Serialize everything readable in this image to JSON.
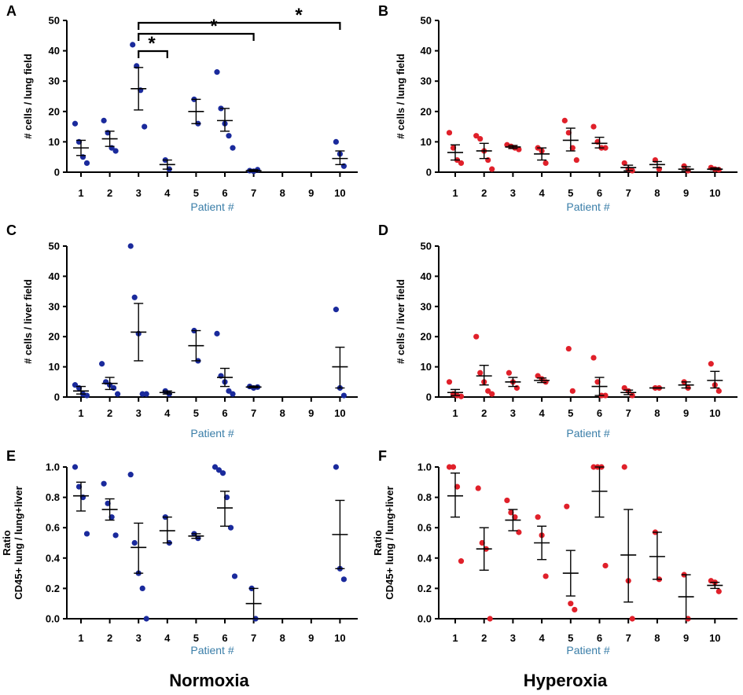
{
  "colors": {
    "normoxia": "#1a2a9c",
    "hyperoxia": "#e0202a",
    "axis": "#000000",
    "xlabel": "#3a7ea8"
  },
  "conditions": {
    "left": "Normoxia",
    "right": "Hyperoxia"
  },
  "chart_data": [
    {
      "id": "A",
      "type": "scatter",
      "panel_label": "A",
      "condition": "normoxia",
      "ylabel": "# cells / lung field",
      "xlabel": "Patient #",
      "ylim": [
        0,
        50
      ],
      "yticks": [
        "0",
        "10",
        "20",
        "30",
        "40",
        "50"
      ],
      "ytick_values": [
        0,
        10,
        20,
        30,
        40,
        50
      ],
      "categories": [
        "1",
        "2",
        "3",
        "4",
        "5",
        "6",
        "7",
        "8",
        "9",
        "10"
      ],
      "groups": [
        {
          "patient": "1",
          "points": [
            16,
            10,
            5,
            3
          ],
          "mean": 8,
          "sem": [
            5.5,
            10.5
          ]
        },
        {
          "patient": "2",
          "points": [
            17,
            13,
            8,
            7
          ],
          "mean": 11,
          "sem": [
            8.5,
            13.5
          ]
        },
        {
          "patient": "3",
          "points": [
            42,
            35,
            27,
            15
          ],
          "mean": 27.5,
          "sem": [
            20.5,
            34.5
          ]
        },
        {
          "patient": "4",
          "points": [
            4,
            1
          ],
          "mean": 2.5,
          "sem": [
            1,
            4
          ]
        },
        {
          "patient": "5",
          "points": [
            24,
            16
          ],
          "mean": 20,
          "sem": [
            16,
            24
          ]
        },
        {
          "patient": "6",
          "points": [
            33,
            21,
            16,
            12,
            8
          ],
          "mean": 17,
          "sem": [
            13.5,
            21
          ]
        },
        {
          "patient": "7",
          "points": [
            0.5,
            0.3,
            0.8
          ],
          "mean": 0.5,
          "sem": [
            0.2,
            0.8
          ]
        },
        {
          "patient": "8",
          "points": [],
          "mean": null,
          "sem": null
        },
        {
          "patient": "9",
          "points": [],
          "mean": null,
          "sem": null
        },
        {
          "patient": "10",
          "points": [
            10,
            6,
            2
          ],
          "mean": 4.5,
          "sem": [
            2.5,
            7
          ]
        }
      ],
      "significance": [
        {
          "from": "3",
          "to": "4",
          "label": "*"
        },
        {
          "from": "3",
          "to": "7",
          "label": "*"
        },
        {
          "from": "3",
          "to": "10",
          "label": "*"
        }
      ]
    },
    {
      "id": "B",
      "type": "scatter",
      "panel_label": "B",
      "condition": "hyperoxia",
      "ylabel": "# cells / lung field",
      "xlabel": "Patient #",
      "ylim": [
        0,
        50
      ],
      "yticks": [
        "0",
        "10",
        "20",
        "30",
        "40",
        "50"
      ],
      "ytick_values": [
        0,
        10,
        20,
        30,
        40,
        50
      ],
      "categories": [
        "1",
        "2",
        "3",
        "4",
        "5",
        "6",
        "7",
        "8",
        "9",
        "10"
      ],
      "groups": [
        {
          "patient": "1",
          "points": [
            13,
            8,
            4,
            3
          ],
          "mean": 6.5,
          "sem": [
            4,
            9
          ]
        },
        {
          "patient": "2",
          "points": [
            12,
            11,
            7,
            4,
            1
          ],
          "mean": 7,
          "sem": [
            4.5,
            9.5
          ]
        },
        {
          "patient": "3",
          "points": [
            9,
            8.5,
            8,
            7.5
          ],
          "mean": 8.3,
          "sem": [
            7.8,
            8.8
          ]
        },
        {
          "patient": "4",
          "points": [
            8,
            7,
            3
          ],
          "mean": 6,
          "sem": [
            4,
            8
          ]
        },
        {
          "patient": "5",
          "points": [
            17,
            13,
            8,
            4
          ],
          "mean": 10.5,
          "sem": [
            7,
            14.5
          ]
        },
        {
          "patient": "6",
          "points": [
            15,
            10,
            8,
            8
          ],
          "mean": 9.5,
          "sem": [
            8,
            11.5
          ]
        },
        {
          "patient": "7",
          "points": [
            3,
            1,
            0.5
          ],
          "mean": 1.5,
          "sem": [
            0.5,
            2.3
          ]
        },
        {
          "patient": "8",
          "points": [
            4,
            1
          ],
          "mean": 2.5,
          "sem": [
            1.5,
            3.5
          ]
        },
        {
          "patient": "9",
          "points": [
            2,
            0.5
          ],
          "mean": 1,
          "sem": [
            0.5,
            1.8
          ]
        },
        {
          "patient": "10",
          "points": [
            1.5,
            1,
            0.8
          ],
          "mean": 1,
          "sem": [
            0.8,
            1.4
          ]
        }
      ]
    },
    {
      "id": "C",
      "type": "scatter",
      "panel_label": "C",
      "condition": "normoxia",
      "ylabel": "# cells / liver field",
      "xlabel": "Patient #",
      "ylim": [
        0,
        50
      ],
      "yticks": [
        "0",
        "10",
        "20",
        "30",
        "40",
        "50"
      ],
      "ytick_values": [
        0,
        10,
        20,
        30,
        40,
        50
      ],
      "categories": [
        "1",
        "2",
        "3",
        "4",
        "5",
        "6",
        "7",
        "8",
        "9",
        "10"
      ],
      "groups": [
        {
          "patient": "1",
          "points": [
            4,
            3,
            1,
            0.5
          ],
          "mean": 2,
          "sem": [
            1,
            3.5
          ]
        },
        {
          "patient": "2",
          "points": [
            11,
            5,
            4,
            3,
            1
          ],
          "mean": 4.5,
          "sem": [
            2.5,
            6.5
          ]
        },
        {
          "patient": "3",
          "points": [
            50,
            33,
            21,
            1,
            1
          ],
          "mean": 21.5,
          "sem": [
            12,
            31
          ]
        },
        {
          "patient": "4",
          "points": [
            2,
            1
          ],
          "mean": 1.5,
          "sem": [
            1,
            2
          ]
        },
        {
          "patient": "5",
          "points": [
            22,
            12
          ],
          "mean": 17,
          "sem": [
            12,
            22
          ]
        },
        {
          "patient": "6",
          "points": [
            21,
            7,
            5,
            2,
            1
          ],
          "mean": 6.5,
          "sem": [
            3.5,
            9.5
          ]
        },
        {
          "patient": "7",
          "points": [
            3.5,
            3,
            3.3
          ],
          "mean": 3.3,
          "sem": [
            3.1,
            3.6
          ]
        },
        {
          "patient": "8",
          "points": [],
          "mean": null,
          "sem": null
        },
        {
          "patient": "9",
          "points": [],
          "mean": null,
          "sem": null
        },
        {
          "patient": "10",
          "points": [
            29,
            3,
            0.5
          ],
          "mean": 10,
          "sem": [
            3,
            16.5
          ]
        }
      ]
    },
    {
      "id": "D",
      "type": "scatter",
      "panel_label": "D",
      "condition": "hyperoxia",
      "ylabel": "# cells / liver field",
      "xlabel": "Patient #",
      "ylim": [
        0,
        50
      ],
      "yticks": [
        "0",
        "10",
        "20",
        "30",
        "40",
        "50"
      ],
      "ytick_values": [
        0,
        10,
        20,
        30,
        40,
        50
      ],
      "categories": [
        "1",
        "2",
        "3",
        "4",
        "5",
        "6",
        "7",
        "8",
        "9",
        "10"
      ],
      "groups": [
        {
          "patient": "1",
          "points": [
            5,
            1,
            0.5,
            0.2
          ],
          "mean": 1.5,
          "sem": [
            0.5,
            2.5
          ]
        },
        {
          "patient": "2",
          "points": [
            20,
            8,
            5,
            2,
            1
          ],
          "mean": 7,
          "sem": [
            4,
            10.5
          ]
        },
        {
          "patient": "3",
          "points": [
            8,
            5,
            3
          ],
          "mean": 5,
          "sem": [
            3.5,
            6.5
          ]
        },
        {
          "patient": "4",
          "points": [
            7,
            6,
            5
          ],
          "mean": 5.5,
          "sem": [
            4.8,
            6.3
          ]
        },
        {
          "patient": "5",
          "points": [
            16,
            2
          ],
          "mean": null,
          "sem": null
        },
        {
          "patient": "6",
          "points": [
            13,
            5,
            0.5,
            0.5
          ],
          "mean": 3.5,
          "sem": [
            0.5,
            6.5
          ]
        },
        {
          "patient": "7",
          "points": [
            3,
            2,
            0.5
          ],
          "mean": 1.5,
          "sem": [
            0.8,
            2.3
          ]
        },
        {
          "patient": "8",
          "points": [
            3,
            3
          ],
          "mean": 3,
          "sem": [
            3,
            3
          ]
        },
        {
          "patient": "9",
          "points": [
            5,
            3
          ],
          "mean": 4,
          "sem": [
            3,
            5
          ]
        },
        {
          "patient": "10",
          "points": [
            11,
            4,
            2
          ],
          "mean": 5.5,
          "sem": [
            3,
            8.5
          ]
        }
      ]
    },
    {
      "id": "E",
      "type": "scatter",
      "panel_label": "E",
      "condition": "normoxia",
      "ylabel": "CD45+ lung / lung+liver",
      "ylabel2": "Ratio",
      "xlabel": "Patient #",
      "ylim": [
        0,
        1
      ],
      "yticks": [
        "0.0",
        "0.2",
        "0.4",
        "0.6",
        "0.8",
        "1.0"
      ],
      "ytick_values": [
        0,
        0.2,
        0.4,
        0.6,
        0.8,
        1.0
      ],
      "categories": [
        "1",
        "2",
        "3",
        "4",
        "5",
        "6",
        "7",
        "8",
        "9",
        "10"
      ],
      "groups": [
        {
          "patient": "1",
          "points": [
            1.0,
            0.87,
            0.8,
            0.56
          ],
          "mean": 0.81,
          "sem": [
            0.71,
            0.9
          ]
        },
        {
          "patient": "2",
          "points": [
            0.89,
            0.76,
            0.67,
            0.55
          ],
          "mean": 0.72,
          "sem": [
            0.65,
            0.79
          ]
        },
        {
          "patient": "3",
          "points": [
            0.95,
            0.5,
            0.3,
            0.2,
            0.0
          ],
          "mean": 0.47,
          "sem": [
            0.3,
            0.63
          ]
        },
        {
          "patient": "4",
          "points": [
            0.67,
            0.5
          ],
          "mean": 0.58,
          "sem": [
            0.5,
            0.67
          ]
        },
        {
          "patient": "5",
          "points": [
            0.56,
            0.53
          ],
          "mean": 0.545,
          "sem": [
            0.53,
            0.56
          ]
        },
        {
          "patient": "6",
          "points": [
            1.0,
            0.98,
            0.96,
            0.8,
            0.6,
            0.28
          ],
          "mean": 0.73,
          "sem": [
            0.61,
            0.84
          ]
        },
        {
          "patient": "7",
          "points": [
            0.2,
            0.0
          ],
          "mean": 0.1,
          "sem": [
            0.0,
            0.2
          ]
        },
        {
          "patient": "8",
          "points": [],
          "mean": null,
          "sem": null
        },
        {
          "patient": "9",
          "points": [],
          "mean": null,
          "sem": null
        },
        {
          "patient": "10",
          "points": [
            1.0,
            0.33,
            0.26
          ],
          "mean": 0.555,
          "sem": [
            0.33,
            0.78
          ]
        }
      ]
    },
    {
      "id": "F",
      "type": "scatter",
      "panel_label": "F",
      "condition": "hyperoxia",
      "ylabel": "CD45+ lung / lung+liver",
      "ylabel2": "Ratio",
      "xlabel": "Patient #",
      "ylim": [
        0,
        1
      ],
      "yticks": [
        "0.0",
        "0.2",
        "0.4",
        "0.6",
        "0.8",
        "1.0"
      ],
      "ytick_values": [
        0,
        0.2,
        0.4,
        0.6,
        0.8,
        1.0
      ],
      "categories": [
        "1",
        "2",
        "3",
        "4",
        "5",
        "6",
        "7",
        "8",
        "9",
        "10"
      ],
      "groups": [
        {
          "patient": "1",
          "points": [
            1.0,
            1.0,
            0.87,
            0.38
          ],
          "mean": 0.81,
          "sem": [
            0.67,
            0.96
          ]
        },
        {
          "patient": "2",
          "points": [
            0.86,
            0.5,
            0.46,
            0.0
          ],
          "mean": 0.46,
          "sem": [
            0.32,
            0.6
          ]
        },
        {
          "patient": "3",
          "points": [
            0.78,
            0.7,
            0.67,
            0.57
          ],
          "mean": 0.65,
          "sem": [
            0.58,
            0.72
          ]
        },
        {
          "patient": "4",
          "points": [
            0.67,
            0.55,
            0.28
          ],
          "mean": 0.5,
          "sem": [
            0.39,
            0.61
          ]
        },
        {
          "patient": "5",
          "points": [
            0.74,
            0.1,
            0.06
          ],
          "mean": 0.3,
          "sem": [
            0.15,
            0.45
          ]
        },
        {
          "patient": "6",
          "points": [
            1.0,
            1.0,
            1.0,
            0.35
          ],
          "mean": 0.84,
          "sem": [
            0.67,
            1.0
          ]
        },
        {
          "patient": "7",
          "points": [
            1.0,
            0.25,
            0.0
          ],
          "mean": 0.42,
          "sem": [
            0.11,
            0.72
          ]
        },
        {
          "patient": "8",
          "points": [
            0.57,
            0.26
          ],
          "mean": 0.41,
          "sem": [
            0.26,
            0.57
          ]
        },
        {
          "patient": "9",
          "points": [
            0.29,
            0.0
          ],
          "mean": 0.145,
          "sem": [
            0.0,
            0.29
          ]
        },
        {
          "patient": "10",
          "points": [
            0.25,
            0.24,
            0.18
          ],
          "mean": 0.22,
          "sem": [
            0.2,
            0.24
          ]
        }
      ]
    }
  ]
}
